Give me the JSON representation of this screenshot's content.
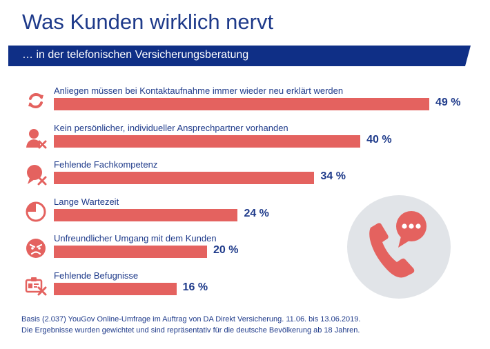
{
  "header": {
    "title": "Was Kunden wirklich nervt",
    "subtitle": "… in der telefonischen Versicherungsberatung"
  },
  "colors": {
    "bar": "#e4625f",
    "text": "#1e3a8a",
    "banner": "#0f2f86",
    "icon": "#e4625f",
    "circle": "#e1e4e8"
  },
  "chart_data": {
    "type": "bar",
    "orientation": "horizontal",
    "categories": [
      "Anliegen müssen bei Kontaktaufnahme immer wieder neu erklärt werden",
      "Kein persönlicher, individueller Ansprechpartner vorhanden",
      "Fehlende Fachkompetenz",
      "Lange Wartezeit",
      "Unfreundlicher Umgang mit dem Kunden",
      "Fehlende Befugnisse"
    ],
    "values": [
      49,
      40,
      34,
      24,
      20,
      16
    ],
    "value_labels": [
      "49 %",
      "40 %",
      "34 %",
      "24 %",
      "20 %",
      "16 %"
    ],
    "icons": [
      "refresh-icon",
      "person-cross-icon",
      "speech-cross-icon",
      "clock-icon",
      "angry-face-icon",
      "id-card-cross-icon"
    ],
    "unit": "%"
  },
  "decoration": {
    "icon": "phone-speech-icon"
  },
  "footnote": {
    "line1": "Basis (2.037) YouGov Online-Umfrage im Auftrag von DA Direkt Versicherung. 11.06. bis 13.06.2019.",
    "line2": "Die Ergebnisse wurden gewichtet und sind repräsentativ für die deutsche Bevölkerung ab 18 Jahren."
  }
}
